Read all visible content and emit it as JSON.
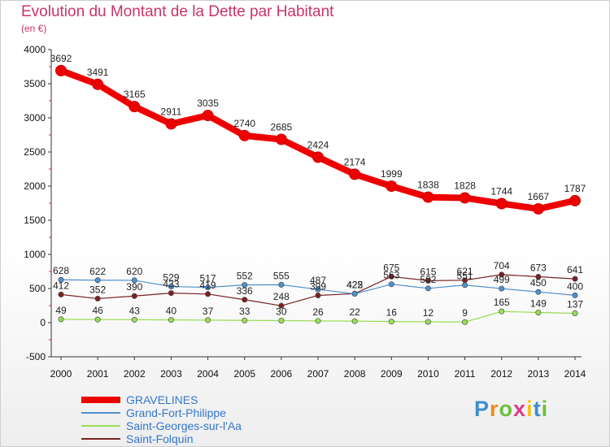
{
  "title": "Evolution du Montant de la Dette par Habitant",
  "subtitle": "(en €)",
  "brand": "Proxiti",
  "chart_data": {
    "type": "line",
    "x": [
      "2000",
      "2001",
      "2002",
      "2003",
      "2004",
      "2005",
      "2006",
      "2007",
      "2008",
      "2009",
      "2010",
      "2011",
      "2012",
      "2013",
      "2014"
    ],
    "yticks": [
      -500,
      0,
      500,
      1000,
      1500,
      2000,
      2500,
      3000,
      3500,
      4000
    ],
    "ylim": [
      -500,
      4000
    ],
    "grid": false,
    "legend_position": "bottom-left",
    "series": [
      {
        "name": "GRAVELINES",
        "color": "#ee0000",
        "width": 8,
        "values": [
          3692,
          3491,
          3165,
          2911,
          3035,
          2740,
          2685,
          2424,
          2174,
          1999,
          1838,
          1828,
          1744,
          1667,
          1787
        ],
        "labels": [
          "3692",
          "3491",
          "3165",
          "2911",
          "3035",
          "2740",
          "2685",
          "2424",
          "2174",
          "1999",
          "1838",
          "1828",
          "1744",
          "1667",
          "1787"
        ]
      },
      {
        "name": "Grand-Fort-Philippe",
        "color": "#4f8fcc",
        "width": 1.2,
        "values": [
          628,
          622,
          620,
          529,
          517,
          552,
          555,
          487,
          422,
          563,
          502,
          551,
          499,
          450,
          400
        ],
        "labels": [
          "628",
          "622",
          "620",
          "529",
          "517",
          "552",
          "555",
          "487",
          "422",
          "563",
          "502",
          "551",
          "499",
          "450",
          "400"
        ]
      },
      {
        "name": "Saint-Georges-sur-l'Aa",
        "color": "#99dd55",
        "width": 1.2,
        "values": [
          49,
          46,
          43,
          40,
          37,
          33,
          30,
          26,
          22,
          16,
          12,
          9,
          165,
          149,
          137
        ],
        "labels": [
          "49",
          "46",
          "43",
          "40",
          "37",
          "33",
          "30",
          "26",
          "22",
          "16",
          "12",
          "9",
          "165",
          "149",
          "137"
        ]
      },
      {
        "name": "Saint-Folquin",
        "color": "#7a2222",
        "width": 1.2,
        "values": [
          412,
          352,
          390,
          433,
          419,
          336,
          248,
          399,
          425,
          675,
          615,
          621,
          704,
          673,
          641
        ],
        "labels": [
          "412",
          "352",
          "390",
          "433",
          "419",
          "336",
          "248",
          "399",
          "425",
          "675",
          "615",
          "621",
          "704",
          "673",
          "641"
        ]
      }
    ]
  }
}
